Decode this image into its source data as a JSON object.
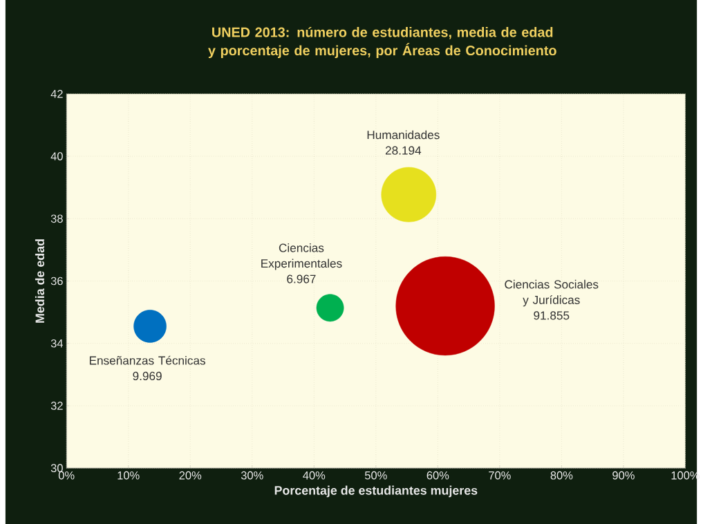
{
  "chart_data": {
    "type": "bubble",
    "title": "UNED 2013: número de estudiantes, media de edad y porcentaje de mujeres, por Áreas de Conocimiento",
    "xlabel": "Porcentaje de estudiantes mujeres",
    "ylabel": "Media de edad",
    "series": [
      {
        "name": "Enseñanzas Técnicas",
        "color": "#0070c0",
        "x": [
          13.5
        ],
        "values": [
          34.55
        ],
        "sizes": [
          0.1085
        ]
      },
      {
        "name": "Ciencias Experimentales",
        "color": "#00b050",
        "x": [
          42.6
        ],
        "values": [
          35.14
        ],
        "sizes": [
          0.0758
        ]
      },
      {
        "name": "Humanidades",
        "color": "#e6e01e",
        "x": [
          55.3
        ],
        "values": [
          38.77
        ],
        "sizes": [
          0.3069
        ]
      },
      {
        "name": "Ciencias Sociales y Jurídicas",
        "color": "#c00000",
        "x": [
          61.2
        ],
        "values": [
          35.2
        ],
        "sizes": [
          1
        ]
      }
    ],
    "annotations": [
      "9.969",
      "6.967",
      "28.194",
      "91.855"
    ],
    "xlim": [
      0,
      100
    ],
    "ylim": [
      30,
      42
    ],
    "xticks": [
      {
        "value": 0,
        "label": "0%"
      },
      {
        "value": 10,
        "label": "10%"
      },
      {
        "value": 20,
        "label": "20%"
      },
      {
        "value": 30,
        "label": "30%"
      },
      {
        "value": 40,
        "label": "40%"
      },
      {
        "value": 50,
        "label": "50%"
      },
      {
        "value": 60,
        "label": "60%"
      },
      {
        "value": 70,
        "label": "70%"
      },
      {
        "value": 80,
        "label": "80%"
      },
      {
        "value": 90,
        "label": "90%"
      },
      {
        "value": 100,
        "label": "100%"
      }
    ],
    "yticks": [
      30,
      32,
      34,
      36,
      38,
      40,
      42
    ],
    "grid": true
  }
}
